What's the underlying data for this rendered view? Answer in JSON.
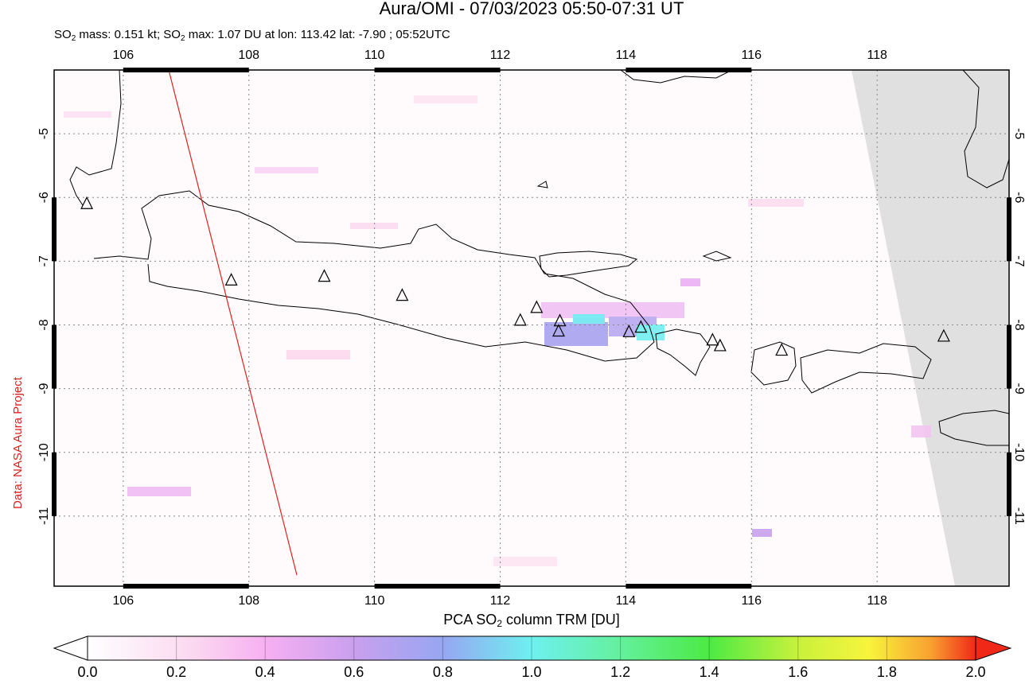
{
  "title": "Aura/OMI - 07/03/2023 05:50-07:31 UT",
  "subtitle": [
    "SO",
    "2",
    " mass: 0.151 kt; SO",
    "2",
    " max: 1.07 DU at lon: 113.42 lat: -7.90 ; 05:52UTC"
  ],
  "credit": "Data: NASA Aura Project",
  "map": {
    "xlim": [
      104.9,
      120.1
    ],
    "ylim": [
      -12.1,
      -4.0
    ],
    "xticks": [
      106,
      108,
      110,
      112,
      114,
      116,
      118
    ],
    "yticks": [
      -5,
      -6,
      -7,
      -8,
      -9,
      -10,
      -11
    ],
    "volcanoes": [
      {
        "lon": 105.42,
        "lat": -6.1
      },
      {
        "lon": 107.72,
        "lat": -7.3
      },
      {
        "lon": 109.2,
        "lat": -7.24
      },
      {
        "lon": 110.44,
        "lat": -7.54
      },
      {
        "lon": 112.32,
        "lat": -7.93
      },
      {
        "lon": 112.58,
        "lat": -7.73
      },
      {
        "lon": 112.95,
        "lat": -7.94
      },
      {
        "lon": 112.93,
        "lat": -8.1
      },
      {
        "lon": 114.05,
        "lat": -8.11
      },
      {
        "lon": 114.24,
        "lat": -8.04
      },
      {
        "lon": 115.38,
        "lat": -8.24
      },
      {
        "lon": 115.5,
        "lat": -8.33
      },
      {
        "lon": 116.48,
        "lat": -8.4
      },
      {
        "lon": 119.06,
        "lat": -8.18
      }
    ]
  },
  "colorbar": {
    "label": [
      "PCA SO",
      "2",
      " column TRM [DU]"
    ],
    "lim": [
      0,
      2
    ],
    "ticks": [
      {
        "value": 0,
        "label": "0.0"
      },
      {
        "value": 0.2,
        "label": "0.2"
      },
      {
        "value": 0.4,
        "label": "0.4"
      },
      {
        "value": 0.6,
        "label": "0.6"
      },
      {
        "value": 0.8,
        "label": "0.8"
      },
      {
        "value": 1.0,
        "label": "1.0"
      },
      {
        "value": 1.2,
        "label": "1.2"
      },
      {
        "value": 1.4,
        "label": "1.4"
      },
      {
        "value": 1.6,
        "label": "1.6"
      },
      {
        "value": 1.8,
        "label": "1.8"
      },
      {
        "value": 2.0,
        "label": "2.0"
      }
    ]
  }
}
